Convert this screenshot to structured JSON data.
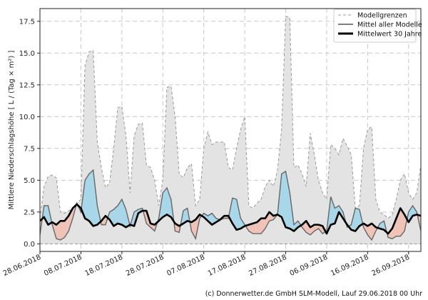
{
  "chart_data": {
    "type": "area",
    "ylabel": "Mittlere Niederschlagshöhe [ L / (Tag × m²) ]",
    "ylim": [
      -0.6,
      18.5
    ],
    "yticks": [
      0.0,
      2.5,
      5.0,
      7.5,
      10.0,
      12.5,
      15.0,
      17.5
    ],
    "ytick_labels": [
      "0.0",
      "2.5",
      "5.0",
      "7.5",
      "10.0",
      "12.5",
      "15.0",
      "17.5"
    ],
    "xlim": [
      0,
      93
    ],
    "xticks": [
      0,
      10,
      20,
      30,
      40,
      50,
      60,
      70,
      80,
      90
    ],
    "xtick_labels": [
      "28.06.2018",
      "08.07.2018",
      "18.07.2018",
      "28.07.2018",
      "07.08.2018",
      "17.08.2018",
      "27.08.2018",
      "06.09.2018",
      "16.09.2018",
      "26.09.2018"
    ],
    "grid": true,
    "legend_position": "top-right",
    "legend": [
      {
        "label": "Modellgrenzen",
        "style": "dashed",
        "color": "#999999"
      },
      {
        "label": "Mittel aller Modelle",
        "style": "solid",
        "color": "#555555"
      },
      {
        "label": "Mittelwert 30 Jahre",
        "style": "bold",
        "color": "#000000"
      }
    ],
    "colors": {
      "envelope_fill": "#e3e3e3",
      "envelope_edge": "#999999",
      "above_normal": "#a9d7ea",
      "below_normal": "#f0c3b8",
      "model_mean": "#666666",
      "climate_mean": "#000000"
    },
    "series": [
      {
        "name": "Modellgrenzen (max)",
        "x": [
          0,
          1,
          2,
          3,
          4,
          5,
          6,
          7,
          8,
          9,
          10,
          11,
          12,
          13,
          14,
          15,
          16,
          17,
          18,
          19,
          20,
          21,
          22,
          23,
          24,
          25,
          26,
          27,
          28,
          29,
          30,
          31,
          32,
          33,
          34,
          35,
          36,
          37,
          38,
          39,
          40,
          41,
          42,
          43,
          44,
          45,
          46,
          47,
          48,
          49,
          50,
          51,
          52,
          53,
          54,
          55,
          56,
          57,
          58,
          59,
          60,
          61,
          62,
          63,
          64,
          65,
          66,
          67,
          68,
          69,
          70,
          71,
          72,
          73,
          74,
          75,
          76,
          77,
          78,
          79,
          80,
          81,
          82,
          83,
          84,
          85,
          86,
          87,
          88,
          89,
          90,
          91,
          92,
          93
        ],
        "values": [
          2.0,
          4.5,
          5.3,
          5.4,
          5.2,
          2.5,
          2.4,
          2.6,
          2.8,
          3.2,
          3.5,
          14.0,
          15.1,
          15.2,
          8.0,
          6.0,
          4.4,
          4.8,
          7.5,
          10.7,
          10.8,
          8.5,
          4.0,
          8.5,
          9.4,
          9.5,
          6.2,
          6.0,
          5.0,
          3.0,
          5.0,
          12.3,
          12.4,
          10.0,
          5.5,
          5.2,
          6.0,
          6.3,
          3.0,
          3.5,
          7.5,
          8.8,
          7.8,
          8.0,
          8.0,
          8.0,
          6.0,
          5.8,
          7.5,
          9.0,
          10.0,
          3.0,
          2.8,
          3.2,
          3.5,
          4.5,
          5.0,
          4.5,
          5.8,
          9.0,
          17.9,
          17.8,
          6.0,
          6.2,
          5.5,
          4.5,
          8.7,
          7.0,
          5.0,
          4.0,
          3.5,
          7.8,
          7.5,
          7.0,
          8.3,
          7.7,
          7.0,
          2.8,
          3.0,
          7.5,
          9.0,
          9.2,
          3.5,
          2.5,
          2.3,
          2.0,
          2.3,
          3.5,
          5.0,
          5.5,
          4.0,
          3.5,
          4.0,
          6.2
        ]
      },
      {
        "name": "Modellgrenzen (min)",
        "x": [
          0,
          1,
          2,
          3,
          4,
          5,
          6,
          7,
          8,
          9,
          10,
          11,
          12,
          13,
          14,
          15,
          16,
          17,
          18,
          19,
          20,
          21,
          22,
          23,
          24,
          25,
          26,
          27,
          28,
          29,
          30,
          31,
          32,
          33,
          34,
          35,
          36,
          37,
          38,
          39,
          40,
          41,
          42,
          43,
          44,
          45,
          46,
          47,
          48,
          49,
          50,
          51,
          52,
          53,
          54,
          55,
          56,
          57,
          58,
          59,
          60,
          61,
          62,
          63,
          64,
          65,
          66,
          67,
          68,
          69,
          70,
          71,
          72,
          73,
          74,
          75,
          76,
          77,
          78,
          79,
          80,
          81,
          82,
          83,
          84,
          85,
          86,
          87,
          88,
          89,
          90,
          91,
          92,
          93
        ],
        "values": [
          0.0,
          0.0,
          0.0,
          0.0,
          0.0,
          0.0,
          0.0,
          0.0,
          0.0,
          0.0,
          0.0,
          0.0,
          0.0,
          0.0,
          0.0,
          0.0,
          0.0,
          0.0,
          0.0,
          0.0,
          0.0,
          0.0,
          0.0,
          0.0,
          0.0,
          0.0,
          0.0,
          0.0,
          0.0,
          0.0,
          0.0,
          0.0,
          0.0,
          0.0,
          0.0,
          0.0,
          0.0,
          0.0,
          0.0,
          0.0,
          0.0,
          0.0,
          0.0,
          0.0,
          0.0,
          0.0,
          0.0,
          0.0,
          0.0,
          0.0,
          0.0,
          0.0,
          0.0,
          0.0,
          0.0,
          0.0,
          0.0,
          0.0,
          0.0,
          0.0,
          0.0,
          0.0,
          0.0,
          0.0,
          0.0,
          0.0,
          0.0,
          0.0,
          0.0,
          0.0,
          0.0,
          0.0,
          0.0,
          0.0,
          0.0,
          0.0,
          0.0,
          0.0,
          0.0,
          0.0,
          0.0,
          0.0,
          0.0,
          0.0,
          0.0,
          0.0,
          0.0,
          0.0,
          0.0,
          0.0,
          0.0,
          0.0,
          0.0,
          0.0
        ]
      },
      {
        "name": "Mittel aller Modelle",
        "x": [
          0,
          1,
          2,
          3,
          4,
          5,
          6,
          7,
          8,
          9,
          10,
          11,
          12,
          13,
          14,
          15,
          16,
          17,
          18,
          19,
          20,
          21,
          22,
          23,
          24,
          25,
          26,
          27,
          28,
          29,
          30,
          31,
          32,
          33,
          34,
          35,
          36,
          37,
          38,
          39,
          40,
          41,
          42,
          43,
          44,
          45,
          46,
          47,
          48,
          49,
          50,
          51,
          52,
          53,
          54,
          55,
          56,
          57,
          58,
          59,
          60,
          61,
          62,
          63,
          64,
          65,
          66,
          67,
          68,
          69,
          70,
          71,
          72,
          73,
          74,
          75,
          76,
          77,
          78,
          79,
          80,
          81,
          82,
          83,
          84,
          85,
          86,
          87,
          88,
          89,
          90,
          91,
          92,
          93
        ],
        "values": [
          0.7,
          3.0,
          3.0,
          1.5,
          0.4,
          0.3,
          0.5,
          1.0,
          2.0,
          3.2,
          2.5,
          5.0,
          5.5,
          5.8,
          3.0,
          1.5,
          1.5,
          2.5,
          2.7,
          3.0,
          3.5,
          2.7,
          1.4,
          2.5,
          2.7,
          2.8,
          1.6,
          1.3,
          1.0,
          2.0,
          4.0,
          4.4,
          3.5,
          1.0,
          0.9,
          2.6,
          2.8,
          1.0,
          0.4,
          2.0,
          2.4,
          2.2,
          2.4,
          2.0,
          1.9,
          2.0,
          2.0,
          3.6,
          3.5,
          2.0,
          1.5,
          1.0,
          0.8,
          0.8,
          0.8,
          1.2,
          1.8,
          1.9,
          2.3,
          5.5,
          5.7,
          4.0,
          1.5,
          1.8,
          1.3,
          0.9,
          0.7,
          1.0,
          1.2,
          0.8,
          1.0,
          3.7,
          2.8,
          3.0,
          2.5,
          1.3,
          1.5,
          2.8,
          2.7,
          1.3,
          0.7,
          0.3,
          1.0,
          1.6,
          1.8,
          0.5,
          0.4,
          0.6,
          0.6,
          1.0,
          2.5,
          3.0,
          2.5,
          1.0
        ]
      },
      {
        "name": "Mittelwert 30 Jahre",
        "x": [
          0,
          1,
          2,
          3,
          4,
          5,
          6,
          7,
          8,
          9,
          10,
          11,
          12,
          13,
          14,
          15,
          16,
          17,
          18,
          19,
          20,
          21,
          22,
          23,
          24,
          25,
          26,
          27,
          28,
          29,
          30,
          31,
          32,
          33,
          34,
          35,
          36,
          37,
          38,
          39,
          40,
          41,
          42,
          43,
          44,
          45,
          46,
          47,
          48,
          49,
          50,
          51,
          52,
          53,
          54,
          55,
          56,
          57,
          58,
          59,
          60,
          61,
          62,
          63,
          64,
          65,
          66,
          67,
          68,
          69,
          70,
          71,
          72,
          73,
          74,
          75,
          76,
          77,
          78,
          79,
          80,
          81,
          82,
          83,
          84,
          85,
          86,
          87,
          88,
          89,
          90,
          91,
          92,
          93
        ],
        "values": [
          1.8,
          2.1,
          1.5,
          1.7,
          1.5,
          1.8,
          1.8,
          2.2,
          2.8,
          3.1,
          2.8,
          2.0,
          1.8,
          1.4,
          1.5,
          1.8,
          2.2,
          1.9,
          1.4,
          1.6,
          1.5,
          1.3,
          1.5,
          1.4,
          2.4,
          2.6,
          2.6,
          1.6,
          1.5,
          1.8,
          2.1,
          2.3,
          2.1,
          1.6,
          1.4,
          1.6,
          1.8,
          1.7,
          1.9,
          2.3,
          2.1,
          1.8,
          1.5,
          1.7,
          1.9,
          2.2,
          2.2,
          1.6,
          1.1,
          1.2,
          1.4,
          1.5,
          1.6,
          1.7,
          2.0,
          2.0,
          2.5,
          2.2,
          2.3,
          2.1,
          1.3,
          1.2,
          1.0,
          1.3,
          1.5,
          1.8,
          1.3,
          1.5,
          1.5,
          1.4,
          0.8,
          1.5,
          1.6,
          2.5,
          2.0,
          1.5,
          1.1,
          1.0,
          1.4,
          1.6,
          1.4,
          1.6,
          1.3,
          1.2,
          1.1,
          0.8,
          1.2,
          2.0,
          2.8,
          2.3,
          1.7,
          2.2,
          2.3,
          2.2
        ]
      }
    ]
  },
  "footer": {
    "credit": "(c) Donnerwetter.de GmbH SLM-Modell, Lauf 29.06.2018 00 Uhr"
  }
}
